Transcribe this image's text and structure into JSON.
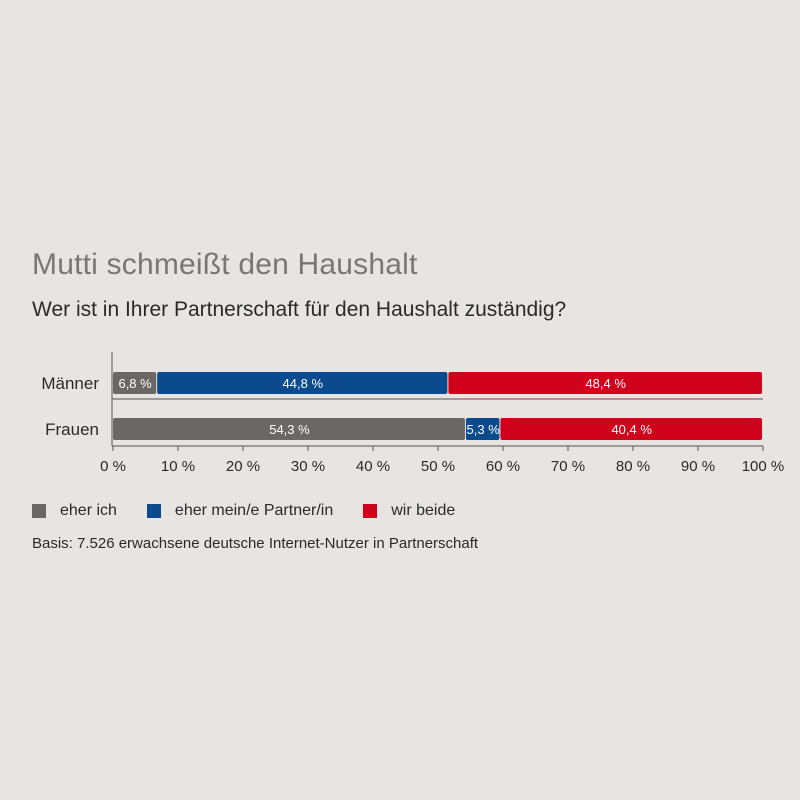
{
  "title": "Mutti schmeißt den Haushalt",
  "subtitle": "Wer ist in Ihrer Partnerschaft für den Haushalt zuständig?",
  "basis": "Basis: 7.526 erwachsene deutsche Internet-Nutzer in Partnerschaft",
  "colors": {
    "eher_ich": "#6b6765",
    "eher_partner": "#0b4a8c",
    "wir_beide": "#d0021b",
    "axis": "#555555",
    "background": "#e8e4e1"
  },
  "chart_data": {
    "type": "bar",
    "orientation": "horizontal",
    "stacked": true,
    "categories": [
      "Männer",
      "Frauen"
    ],
    "series": [
      {
        "name": "eher ich",
        "values": [
          6.8,
          54.3
        ],
        "labels": [
          "6,8 %",
          "54,3 %"
        ]
      },
      {
        "name": "eher mein/e Partner/in",
        "values": [
          44.8,
          5.3
        ],
        "labels": [
          "44,8 %",
          "5,3 %"
        ]
      },
      {
        "name": "wir beide",
        "values": [
          48.4,
          40.4
        ],
        "labels": [
          "48,4 %",
          "40,4 %"
        ]
      }
    ],
    "xlim": [
      0,
      100
    ],
    "ticks": [
      "0 %",
      "10 %",
      "20 %",
      "30 %",
      "40 %",
      "50 %",
      "60 %",
      "70 %",
      "80 %",
      "90 %",
      "100 %"
    ],
    "grid": false,
    "legend": "bottom-left"
  }
}
